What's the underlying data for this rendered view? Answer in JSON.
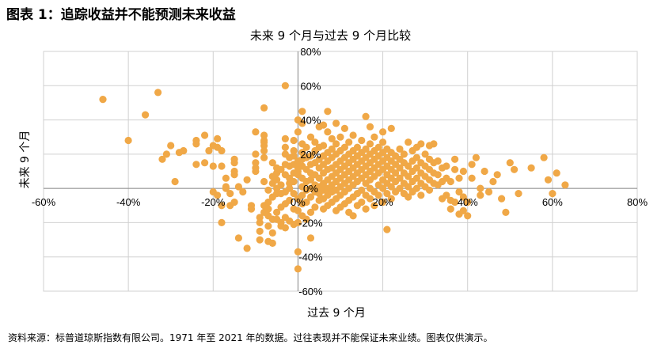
{
  "figure": {
    "title": "图表 1：追踪收益并不能预测未来收益",
    "source_note": "资料来源：标普道琼斯指数有限公司。1971 年至 2021 年的数据。过往表现并不能保证未来业绩。图表仅供演示。"
  },
  "colors": {
    "point": "#F0A847",
    "grid": "#D0D0D0",
    "axis": "#888888"
  },
  "chart_data": {
    "type": "scatter",
    "title": "未来 9 个月与过去 9 个月比较",
    "xlabel": "过去 9 个月",
    "ylabel": "未来 9 个月",
    "xlim": [
      -60,
      80
    ],
    "ylim": [
      -60,
      80
    ],
    "x_ticks": [
      "-60%",
      "-40%",
      "-20%",
      "0%",
      "20%",
      "40%",
      "60%",
      "80%"
    ],
    "y_ticks": [
      "80%",
      "60%",
      "40%",
      "20%",
      "0%",
      "-20%",
      "-40%",
      "-60%"
    ],
    "grid": true,
    "legend": false,
    "unit": "%",
    "points": [
      [
        -46,
        52
      ],
      [
        -40,
        28
      ],
      [
        -36,
        43
      ],
      [
        -33,
        56
      ],
      [
        -32,
        17
      ],
      [
        -31,
        20
      ],
      [
        -30,
        25
      ],
      [
        -29,
        4
      ],
      [
        -28,
        21
      ],
      [
        -27,
        22
      ],
      [
        -24,
        28
      ],
      [
        -24,
        26
      ],
      [
        -24,
        14
      ],
      [
        -22,
        31
      ],
      [
        -22,
        15
      ],
      [
        -21,
        22
      ],
      [
        -20,
        25
      ],
      [
        -20,
        13
      ],
      [
        -20,
        -2
      ],
      [
        -19,
        -4
      ],
      [
        -19,
        29
      ],
      [
        -19,
        24
      ],
      [
        -18,
        -10
      ],
      [
        -18,
        -20
      ],
      [
        -18,
        13
      ],
      [
        -18,
        22
      ],
      [
        -17,
        6
      ],
      [
        -17,
        1
      ],
      [
        -17,
        0
      ],
      [
        -16,
        -3
      ],
      [
        -16,
        -10
      ],
      [
        -15,
        10
      ],
      [
        -15,
        8
      ],
      [
        -15,
        -8
      ],
      [
        -15,
        17
      ],
      [
        -15,
        15
      ],
      [
        -14,
        -29
      ],
      [
        -14,
        1
      ],
      [
        -13,
        -2
      ],
      [
        -12,
        -35
      ],
      [
        -12,
        5
      ],
      [
        -11,
        -10
      ],
      [
        -11,
        -12
      ],
      [
        -10,
        33
      ],
      [
        -10,
        10
      ],
      [
        -10,
        12
      ],
      [
        -10,
        15
      ],
      [
        -10,
        20
      ],
      [
        -9,
        -20
      ],
      [
        -9,
        -25
      ],
      [
        -9,
        -30
      ],
      [
        -9,
        -17
      ],
      [
        -8,
        -10
      ],
      [
        -8,
        -14
      ],
      [
        -8,
        4
      ],
      [
        -8,
        18
      ],
      [
        -8,
        22
      ],
      [
        -8,
        25
      ],
      [
        -8,
        27
      ],
      [
        -8,
        28
      ],
      [
        -8,
        31
      ],
      [
        -8,
        47
      ],
      [
        -7,
        -1
      ],
      [
        -7,
        -8
      ],
      [
        -7,
        -12
      ],
      [
        -7,
        -16
      ],
      [
        -7,
        -22
      ],
      [
        -7,
        -31
      ],
      [
        -6,
        -5
      ],
      [
        -6,
        -18
      ],
      [
        -6,
        -26
      ],
      [
        -6,
        -32
      ],
      [
        -6,
        3
      ],
      [
        -6,
        7
      ],
      [
        -6,
        15
      ],
      [
        -5,
        -14
      ],
      [
        -5,
        -18
      ],
      [
        -5,
        -3
      ],
      [
        -5,
        0
      ],
      [
        -5,
        5
      ],
      [
        -5,
        9
      ],
      [
        -5,
        12
      ],
      [
        -4,
        -20
      ],
      [
        -4,
        -22
      ],
      [
        -4,
        -11
      ],
      [
        -4,
        2
      ],
      [
        -4,
        -3
      ],
      [
        -4,
        11
      ],
      [
        -3,
        60
      ],
      [
        -3,
        -2
      ],
      [
        -3,
        -23
      ],
      [
        -3,
        -17
      ],
      [
        -3,
        -9
      ],
      [
        -3,
        8
      ],
      [
        -3,
        14
      ],
      [
        -3,
        20
      ],
      [
        -3,
        24
      ],
      [
        -3,
        29
      ],
      [
        -2,
        -19
      ],
      [
        -2,
        0
      ],
      [
        -2,
        3
      ],
      [
        -2,
        -7
      ],
      [
        -2,
        6
      ],
      [
        -2,
        13
      ],
      [
        -2,
        18
      ],
      [
        -1,
        -3
      ],
      [
        -1,
        -12
      ],
      [
        -1,
        -21
      ],
      [
        -1,
        4
      ],
      [
        -1,
        9
      ],
      [
        -1,
        14
      ],
      [
        -1,
        19
      ],
      [
        -1,
        22
      ],
      [
        -1,
        28
      ],
      [
        0,
        -47
      ],
      [
        0,
        -37
      ],
      [
        0,
        -20
      ],
      [
        0,
        -13
      ],
      [
        0,
        -6
      ],
      [
        0,
        8
      ],
      [
        0,
        10
      ],
      [
        0,
        12
      ],
      [
        0,
        16
      ],
      [
        0,
        33
      ],
      [
        0,
        40
      ],
      [
        1,
        -4
      ],
      [
        1,
        -9
      ],
      [
        1,
        -16
      ],
      [
        1,
        1
      ],
      [
        1,
        6
      ],
      [
        1,
        13
      ],
      [
        1,
        17
      ],
      [
        1,
        21
      ],
      [
        1,
        26
      ],
      [
        1,
        38
      ],
      [
        1,
        45
      ],
      [
        2,
        -18
      ],
      [
        2,
        -8
      ],
      [
        2,
        -1
      ],
      [
        2,
        4
      ],
      [
        2,
        11
      ],
      [
        2,
        18
      ],
      [
        2,
        24
      ],
      [
        3,
        -29
      ],
      [
        3,
        -14
      ],
      [
        3,
        -5
      ],
      [
        3,
        0
      ],
      [
        3,
        5
      ],
      [
        3,
        9
      ],
      [
        3,
        14
      ],
      [
        3,
        19
      ],
      [
        3,
        30
      ],
      [
        4,
        -11
      ],
      [
        4,
        -2
      ],
      [
        4,
        2
      ],
      [
        4,
        8
      ],
      [
        4,
        15
      ],
      [
        4,
        22
      ],
      [
        4,
        27
      ],
      [
        5,
        -7
      ],
      [
        5,
        -3
      ],
      [
        5,
        1
      ],
      [
        5,
        6
      ],
      [
        5,
        12
      ],
      [
        5,
        17
      ],
      [
        5,
        24
      ],
      [
        5,
        36
      ],
      [
        6,
        -12
      ],
      [
        6,
        -6
      ],
      [
        6,
        -1
      ],
      [
        6,
        3
      ],
      [
        6,
        9
      ],
      [
        6,
        14
      ],
      [
        6,
        19
      ],
      [
        6,
        25
      ],
      [
        6,
        37
      ],
      [
        7,
        -10
      ],
      [
        7,
        -4
      ],
      [
        7,
        0
      ],
      [
        7,
        5
      ],
      [
        7,
        11
      ],
      [
        7,
        16
      ],
      [
        7,
        21
      ],
      [
        7,
        33
      ],
      [
        7,
        45
      ],
      [
        8,
        -8
      ],
      [
        8,
        -2
      ],
      [
        8,
        2
      ],
      [
        8,
        7
      ],
      [
        8,
        12
      ],
      [
        8,
        18
      ],
      [
        8,
        23
      ],
      [
        8,
        29
      ],
      [
        9,
        -13
      ],
      [
        9,
        -6
      ],
      [
        9,
        -1
      ],
      [
        9,
        4
      ],
      [
        9,
        9
      ],
      [
        9,
        14
      ],
      [
        9,
        20
      ],
      [
        9,
        26
      ],
      [
        9,
        38
      ],
      [
        10,
        -11
      ],
      [
        10,
        -4
      ],
      [
        10,
        1
      ],
      [
        10,
        6
      ],
      [
        10,
        11
      ],
      [
        10,
        16
      ],
      [
        10,
        22
      ],
      [
        10,
        30
      ],
      [
        11,
        -9
      ],
      [
        11,
        -2
      ],
      [
        11,
        3
      ],
      [
        11,
        8
      ],
      [
        11,
        13
      ],
      [
        11,
        18
      ],
      [
        11,
        24
      ],
      [
        11,
        35
      ],
      [
        12,
        -14
      ],
      [
        12,
        -7
      ],
      [
        12,
        0
      ],
      [
        12,
        5
      ],
      [
        12,
        10
      ],
      [
        12,
        15
      ],
      [
        12,
        20
      ],
      [
        12,
        27
      ],
      [
        13,
        -16
      ],
      [
        13,
        -5
      ],
      [
        13,
        2
      ],
      [
        13,
        7
      ],
      [
        13,
        12
      ],
      [
        13,
        17
      ],
      [
        13,
        22
      ],
      [
        13,
        31
      ],
      [
        14,
        -10
      ],
      [
        14,
        -3
      ],
      [
        14,
        4
      ],
      [
        14,
        9
      ],
      [
        14,
        14
      ],
      [
        14,
        19
      ],
      [
        14,
        24
      ],
      [
        15,
        -8
      ],
      [
        15,
        -1
      ],
      [
        15,
        6
      ],
      [
        15,
        11
      ],
      [
        15,
        16
      ],
      [
        15,
        21
      ],
      [
        15,
        28
      ],
      [
        16,
        -12
      ],
      [
        16,
        -4
      ],
      [
        16,
        3
      ],
      [
        16,
        8
      ],
      [
        16,
        13
      ],
      [
        16,
        18
      ],
      [
        16,
        23
      ],
      [
        16,
        42
      ],
      [
        17,
        -6
      ],
      [
        17,
        0
      ],
      [
        17,
        5
      ],
      [
        17,
        10
      ],
      [
        17,
        15
      ],
      [
        17,
        20
      ],
      [
        17,
        26
      ],
      [
        17,
        36
      ],
      [
        18,
        -10
      ],
      [
        18,
        -2
      ],
      [
        18,
        7
      ],
      [
        18,
        12
      ],
      [
        18,
        17
      ],
      [
        18,
        22
      ],
      [
        18,
        30
      ],
      [
        19,
        -4
      ],
      [
        19,
        2
      ],
      [
        19,
        9
      ],
      [
        19,
        14
      ],
      [
        19,
        19
      ],
      [
        19,
        24
      ],
      [
        20,
        -8
      ],
      [
        20,
        0
      ],
      [
        20,
        5
      ],
      [
        20,
        11
      ],
      [
        20,
        16
      ],
      [
        20,
        21
      ],
      [
        20,
        27
      ],
      [
        20,
        33
      ],
      [
        21,
        -24
      ],
      [
        21,
        -3
      ],
      [
        21,
        3
      ],
      [
        21,
        8
      ],
      [
        21,
        13
      ],
      [
        21,
        18
      ],
      [
        21,
        23
      ],
      [
        22,
        -6
      ],
      [
        22,
        1
      ],
      [
        22,
        6
      ],
      [
        22,
        11
      ],
      [
        22,
        16
      ],
      [
        22,
        21
      ],
      [
        22,
        35
      ],
      [
        23,
        -2
      ],
      [
        23,
        4
      ],
      [
        23,
        9
      ],
      [
        23,
        14
      ],
      [
        23,
        19
      ],
      [
        24,
        0
      ],
      [
        24,
        6
      ],
      [
        24,
        12
      ],
      [
        24,
        17
      ],
      [
        24,
        23
      ],
      [
        25,
        -3
      ],
      [
        25,
        3
      ],
      [
        25,
        9
      ],
      [
        25,
        15
      ],
      [
        25,
        20
      ],
      [
        26,
        -5
      ],
      [
        26,
        1
      ],
      [
        26,
        7
      ],
      [
        26,
        13
      ],
      [
        26,
        27
      ],
      [
        27,
        -2
      ],
      [
        27,
        4
      ],
      [
        27,
        10
      ],
      [
        27,
        16
      ],
      [
        27,
        22
      ],
      [
        28,
        0
      ],
      [
        28,
        6
      ],
      [
        28,
        12
      ],
      [
        28,
        18
      ],
      [
        28,
        24
      ],
      [
        29,
        -4
      ],
      [
        29,
        3
      ],
      [
        29,
        9
      ],
      [
        29,
        15
      ],
      [
        29,
        26
      ],
      [
        30,
        1
      ],
      [
        30,
        7
      ],
      [
        30,
        13
      ],
      [
        30,
        20
      ],
      [
        31,
        -1
      ],
      [
        31,
        5
      ],
      [
        31,
        11
      ],
      [
        31,
        17
      ],
      [
        31,
        25
      ],
      [
        32,
        3
      ],
      [
        32,
        9
      ],
      [
        32,
        15
      ],
      [
        32,
        26
      ],
      [
        33,
        2
      ],
      [
        33,
        8
      ],
      [
        33,
        16
      ],
      [
        34,
        -6
      ],
      [
        34,
        4
      ],
      [
        34,
        12
      ],
      [
        35,
        -4
      ],
      [
        35,
        6
      ],
      [
        35,
        13
      ],
      [
        36,
        -12
      ],
      [
        36,
        -7
      ],
      [
        36,
        4
      ],
      [
        37,
        -8
      ],
      [
        37,
        11
      ],
      [
        37,
        17
      ],
      [
        38,
        -15
      ],
      [
        38,
        -2
      ],
      [
        38,
        6
      ],
      [
        39,
        -13
      ],
      [
        39,
        -5
      ],
      [
        39,
        10
      ],
      [
        40,
        -16
      ],
      [
        40,
        -8
      ],
      [
        41,
        6
      ],
      [
        41,
        14
      ],
      [
        42,
        18
      ],
      [
        43,
        -4
      ],
      [
        43,
        0
      ],
      [
        44,
        10
      ],
      [
        45,
        -2
      ],
      [
        46,
        4
      ],
      [
        47,
        8
      ],
      [
        48,
        -6
      ],
      [
        49,
        -14
      ],
      [
        50,
        15
      ],
      [
        51,
        11
      ],
      [
        52,
        -3
      ],
      [
        55,
        12
      ],
      [
        58,
        18
      ],
      [
        59,
        5
      ],
      [
        60,
        -3
      ],
      [
        61,
        9
      ],
      [
        63,
        2
      ]
    ]
  }
}
